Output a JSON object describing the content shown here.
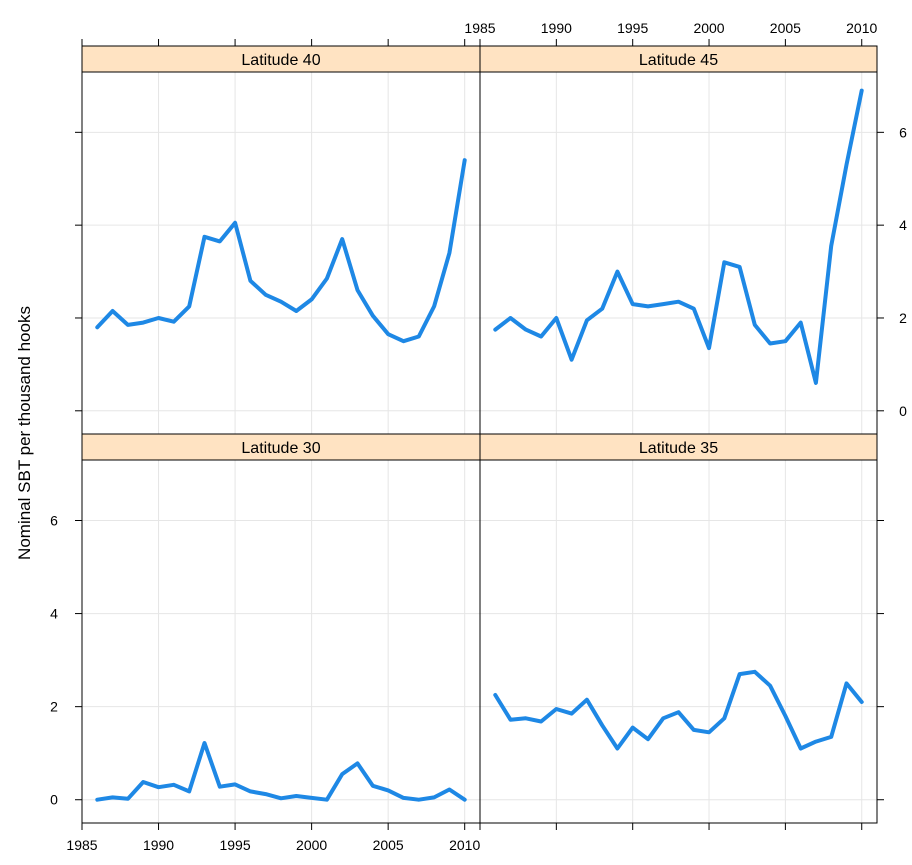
{
  "chart_data": {
    "type": "line",
    "ylabel": "Nominal SBT per thousand hooks",
    "xlim": [
      1985,
      2011
    ],
    "ylim": [
      -0.5,
      7.3
    ],
    "x_ticks": [
      1985,
      1990,
      1995,
      2000,
      2005,
      2010
    ],
    "y_ticks": [
      0,
      2,
      4,
      6
    ],
    "grid": true,
    "colors": {
      "line": "#1e88e5",
      "strip_fill": "#ffe3c2",
      "grid": "#e6e6e6",
      "frame": "#000000"
    },
    "panels": [
      {
        "name": "Latitude 40",
        "x": [
          1986,
          1987,
          1988,
          1989,
          1990,
          1991,
          1992,
          1993,
          1994,
          1995,
          1996,
          1997,
          1998,
          1999,
          2000,
          2001,
          2002,
          2003,
          2004,
          2005,
          2006,
          2007,
          2008,
          2009,
          2010
        ],
        "values": [
          1.8,
          2.15,
          1.85,
          1.9,
          2.0,
          1.92,
          2.25,
          3.75,
          3.65,
          4.05,
          2.8,
          2.5,
          2.35,
          2.15,
          2.4,
          2.85,
          3.7,
          2.6,
          2.05,
          1.65,
          1.5,
          1.6,
          2.25,
          3.4,
          5.4
        ]
      },
      {
        "name": "Latitude 45",
        "x": [
          1986,
          1987,
          1988,
          1989,
          1990,
          1991,
          1992,
          1993,
          1994,
          1995,
          1996,
          1997,
          1998,
          1999,
          2000,
          2001,
          2002,
          2003,
          2004,
          2005,
          2006,
          2007,
          2008,
          2009,
          2010
        ],
        "values": [
          1.75,
          2.0,
          1.75,
          1.6,
          2.0,
          1.1,
          1.95,
          2.2,
          3.0,
          2.3,
          2.25,
          2.3,
          2.35,
          2.2,
          1.35,
          3.2,
          3.1,
          1.85,
          1.45,
          1.5,
          1.9,
          0.6,
          3.55,
          5.3,
          6.9
        ]
      },
      {
        "name": "Latitude 30",
        "x": [
          1986,
          1987,
          1988,
          1989,
          1990,
          1991,
          1992,
          1993,
          1994,
          1995,
          1996,
          1997,
          1998,
          1999,
          2000,
          2001,
          2002,
          2003,
          2004,
          2005,
          2006,
          2007,
          2008,
          2009,
          2010
        ],
        "values": [
          0.0,
          0.05,
          0.02,
          0.38,
          0.27,
          0.32,
          0.18,
          1.22,
          0.28,
          0.33,
          0.18,
          0.12,
          0.03,
          0.08,
          0.04,
          0.0,
          0.55,
          0.78,
          0.3,
          0.2,
          0.04,
          0.0,
          0.05,
          0.22,
          0.0
        ]
      },
      {
        "name": "Latitude 35",
        "x": [
          1986,
          1987,
          1988,
          1989,
          1990,
          1991,
          1992,
          1993,
          1994,
          1995,
          1996,
          1997,
          1998,
          1999,
          2000,
          2001,
          2002,
          2003,
          2004,
          2005,
          2006,
          2007,
          2008,
          2009,
          2010
        ],
        "values": [
          2.25,
          1.72,
          1.75,
          1.68,
          1.95,
          1.85,
          2.15,
          1.6,
          1.1,
          1.55,
          1.3,
          1.75,
          1.88,
          1.5,
          1.45,
          1.75,
          2.7,
          2.75,
          2.45,
          1.8,
          1.1,
          1.25,
          1.35,
          2.5,
          2.1
        ]
      }
    ]
  }
}
